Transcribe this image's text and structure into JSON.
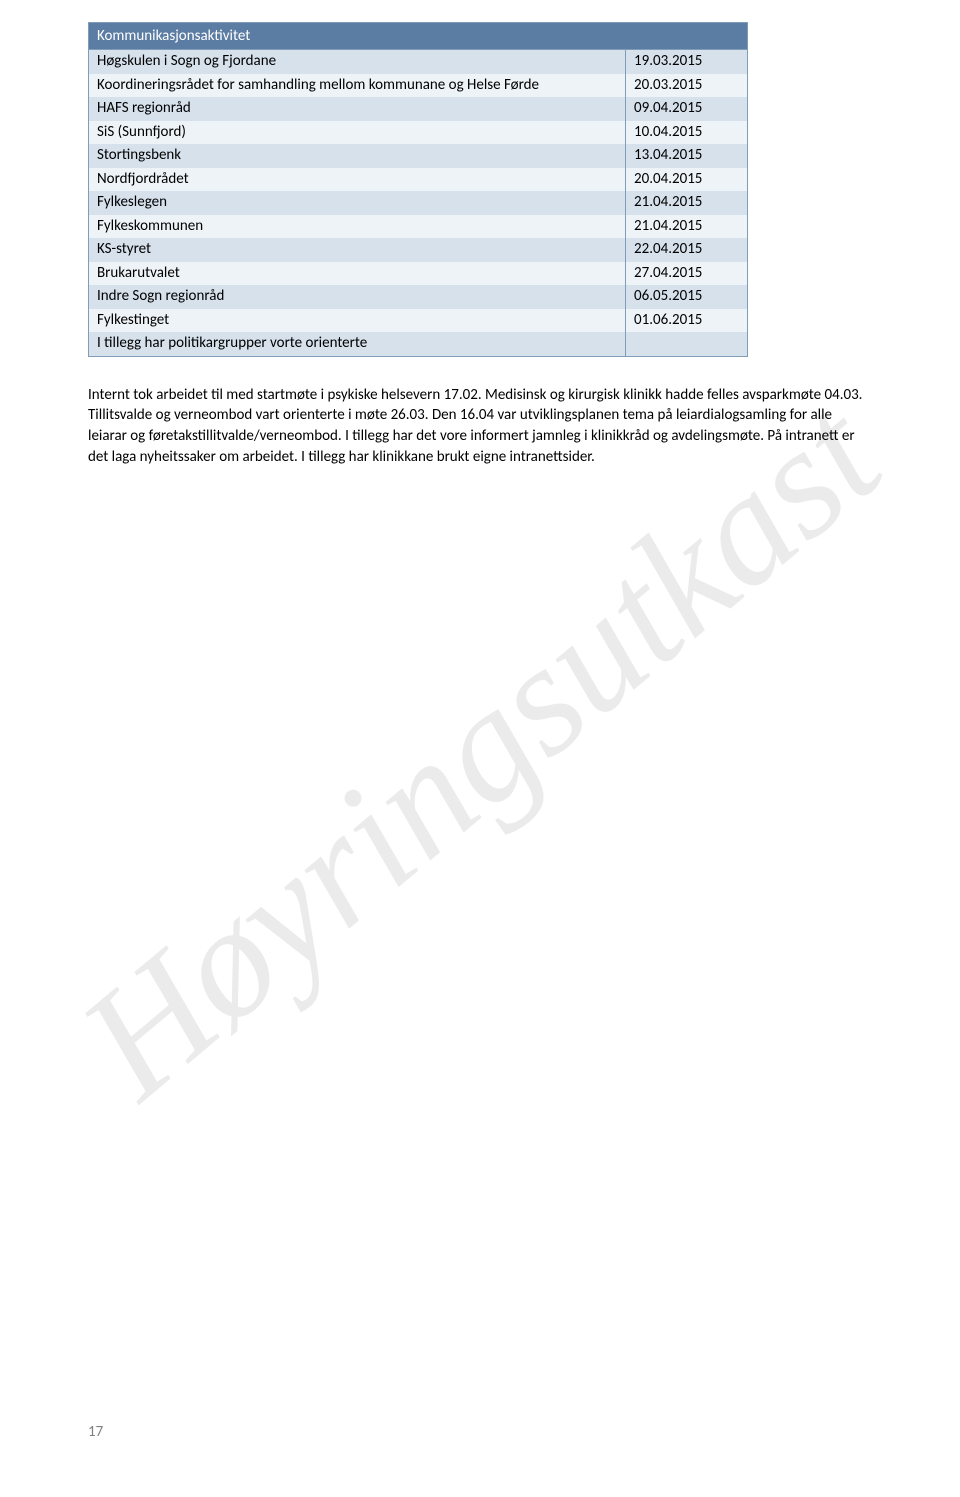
{
  "watermark": "Høyringsutkast",
  "table": {
    "header": "Kommunikasjonsaktivitet",
    "rows": [
      {
        "label": "Høgskulen i Sogn og Fjordane",
        "date": "19.03.2015"
      },
      {
        "label": "Koordineringsrådet for samhandling mellom kommunane og Helse Førde",
        "date": "20.03.2015"
      },
      {
        "label": "HAFS regionråd",
        "date": "09.04.2015"
      },
      {
        "label": "SiS (Sunnfjord)",
        "date": "10.04.2015"
      },
      {
        "label": "Stortingsbenk",
        "date": "13.04.2015"
      },
      {
        "label": "Nordfjordrådet",
        "date": "20.04.2015"
      },
      {
        "label": "Fylkeslegen",
        "date": "21.04.2015"
      },
      {
        "label": "Fylkeskommunen",
        "date": "21.04.2015"
      },
      {
        "label": "KS-styret",
        "date": "22.04.2015"
      },
      {
        "label": "Brukarutvalet",
        "date": "27.04.2015"
      },
      {
        "label": "Indre Sogn regionråd",
        "date": "06.05.2015"
      },
      {
        "label": "Fylkestinget",
        "date": "01.06.2015"
      },
      {
        "label": "I tillegg har politikargrupper vorte orienterte",
        "date": ""
      }
    ]
  },
  "paragraph": "Internt tok arbeidet til med startmøte i psykiske helsevern 17.02. Medisinsk og kirurgisk klinikk hadde felles avsparkmøte 04.03. Tillitsvalde og verneombod vart orienterte i møte 26.03. Den 16.04 var utviklingsplanen tema på leiardialogsamling for alle leiarar og føretakstillitvalde/verneombod. I tillegg har det vore informert jamnleg i klinikkråd og avdelingsmøte. På intranett er det laga nyheitssaker om  arbeidet. I tillegg har klinikkane brukt eigne intranettsider.",
  "page_number": "17",
  "colors": {
    "header_bg": "#5b7ca3",
    "row_odd": "#d6e1ec",
    "row_even": "#eef3f8",
    "border": "#7f9db9",
    "watermark": "rgba(0,0,0,0.08)",
    "text": "#000000",
    "pagenum": "#808080"
  }
}
